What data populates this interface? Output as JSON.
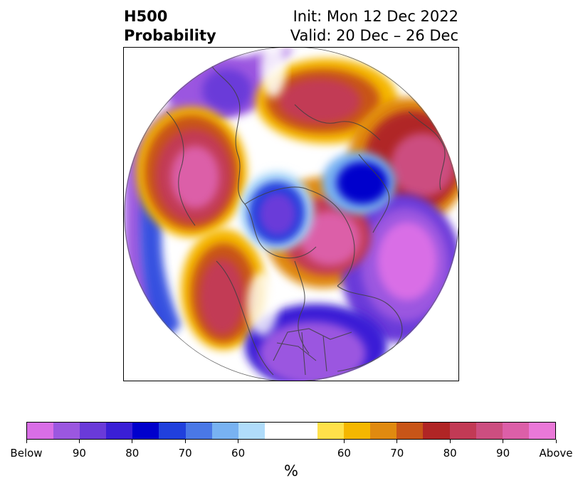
{
  "header": {
    "title_line1": "H500",
    "title_line2": "Probability",
    "init_text": "Init: Mon 12 Dec 2022",
    "valid_text": "Valid: 20 Dec – 26 Dec"
  },
  "colorbar": {
    "colors": [
      "#d96ee6",
      "#9b57e0",
      "#6a3ad9",
      "#3a1fd6",
      "#0000cc",
      "#2040dd",
      "#4a78e6",
      "#78b2f2",
      "#b0dcfa",
      "#ffffff",
      "#ffe14a",
      "#f5b700",
      "#e08a10",
      "#c85518",
      "#b02525",
      "#c23a55",
      "#cc4e80",
      "#dc5fa8",
      "#ea78d8"
    ],
    "tick_labels": [
      "Below",
      "90",
      "80",
      "70",
      "60",
      "60",
      "70",
      "80",
      "90",
      "Above"
    ],
    "unit": "%"
  }
}
